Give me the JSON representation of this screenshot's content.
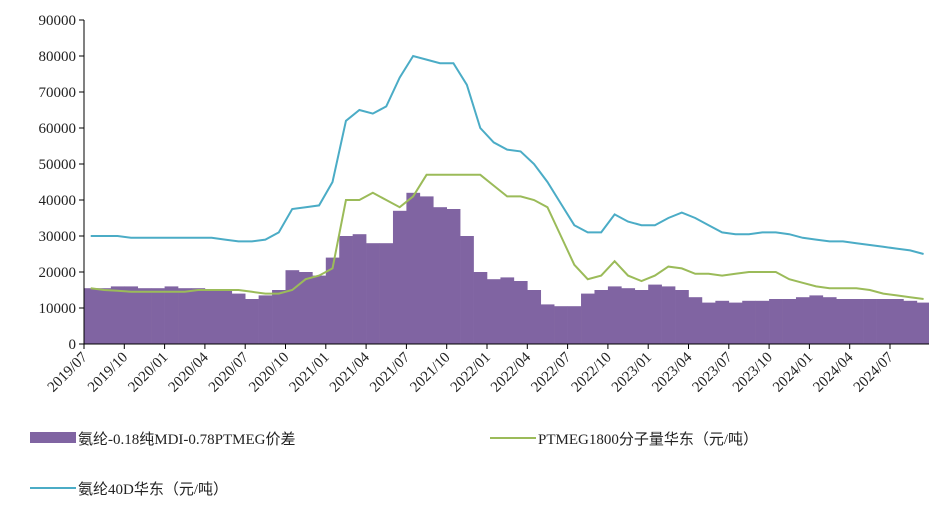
{
  "chart_data": {
    "type": "bar",
    "x": [
      "2019/07",
      "2019/08",
      "2019/09",
      "2019/10",
      "2019/11",
      "2019/12",
      "2020/01",
      "2020/02",
      "2020/03",
      "2020/04",
      "2020/05",
      "2020/06",
      "2020/07",
      "2020/08",
      "2020/09",
      "2020/10",
      "2020/11",
      "2020/12",
      "2021/01",
      "2021/02",
      "2021/03",
      "2021/04",
      "2021/05",
      "2021/06",
      "2021/07",
      "2021/08",
      "2021/09",
      "2021/10",
      "2021/11",
      "2021/12",
      "2022/01",
      "2022/02",
      "2022/03",
      "2022/04",
      "2022/05",
      "2022/06",
      "2022/07",
      "2022/08",
      "2022/09",
      "2022/10",
      "2022/11",
      "2022/12",
      "2023/01",
      "2023/02",
      "2023/03",
      "2023/04",
      "2023/05",
      "2023/06",
      "2023/07",
      "2023/08",
      "2023/09",
      "2023/10",
      "2023/11",
      "2023/12",
      "2024/01",
      "2024/02",
      "2024/03",
      "2024/04",
      "2024/05",
      "2024/06",
      "2024/07",
      "2024/08",
      "2024/09"
    ],
    "xticks": [
      "2019/07",
      "2019/10",
      "2020/01",
      "2020/04",
      "2020/07",
      "2020/10",
      "2021/01",
      "2021/04",
      "2021/07",
      "2021/10",
      "2022/01",
      "2022/04",
      "2022/07",
      "2022/10",
      "2023/01",
      "2023/04",
      "2023/07",
      "2023/10",
      "2024/01",
      "2024/04",
      "2024/07"
    ],
    "ylim": [
      0,
      90000
    ],
    "yticks": [
      0,
      10000,
      20000,
      30000,
      40000,
      50000,
      60000,
      70000,
      80000,
      90000
    ],
    "series": [
      {
        "name": "氨纶-0.18纯MDI-0.78PTMEG价差",
        "type": "bar",
        "color": "#8064a2",
        "values": [
          15500,
          15500,
          16000,
          16000,
          15500,
          15500,
          16000,
          15500,
          15500,
          15000,
          15000,
          14000,
          12500,
          13500,
          15000,
          20500,
          20000,
          19000,
          24000,
          30000,
          30500,
          28000,
          28000,
          37000,
          42000,
          41000,
          38000,
          37500,
          30000,
          20000,
          18000,
          18500,
          17500,
          15000,
          11000,
          10500,
          10500,
          14000,
          15000,
          16000,
          15500,
          15000,
          16500,
          16000,
          15000,
          13000,
          11500,
          12000,
          11500,
          12000,
          12000,
          12500,
          12500,
          13000,
          13500,
          13000,
          12500,
          12500,
          12500,
          12500,
          12500,
          12000,
          11500
        ]
      },
      {
        "name": "PTMEG1800分子量华东（元/吨）",
        "type": "line",
        "color": "#9bbb59",
        "values": [
          15500,
          15000,
          14800,
          14500,
          14500,
          14500,
          14500,
          14500,
          15000,
          15000,
          15000,
          15000,
          14500,
          14000,
          14000,
          15000,
          18000,
          19000,
          21000,
          40000,
          40000,
          42000,
          40000,
          38000,
          41000,
          47000,
          47000,
          47000,
          47000,
          47000,
          44000,
          41000,
          41000,
          40000,
          38000,
          30000,
          22000,
          18000,
          19000,
          23000,
          19000,
          17500,
          19000,
          21500,
          21000,
          19500,
          19500,
          19000,
          19500,
          20000,
          20000,
          20000,
          18000,
          17000,
          16000,
          15500,
          15500,
          15500,
          15000,
          14000,
          13500,
          13000,
          12500
        ]
      },
      {
        "name": "氨纶40D华东（元/吨）",
        "type": "line",
        "color": "#4bacc6",
        "values": [
          30000,
          30000,
          30000,
          29500,
          29500,
          29500,
          29500,
          29500,
          29500,
          29500,
          29000,
          28500,
          28500,
          29000,
          31000,
          37500,
          38000,
          38500,
          45000,
          62000,
          65000,
          64000,
          66000,
          74000,
          80000,
          79000,
          78000,
          78000,
          72000,
          60000,
          56000,
          54000,
          53500,
          50000,
          45000,
          39000,
          33000,
          31000,
          31000,
          36000,
          34000,
          33000,
          33000,
          35000,
          36500,
          35000,
          33000,
          31000,
          30500,
          30500,
          31000,
          31000,
          30500,
          29500,
          29000,
          28500,
          28500,
          28000,
          27500,
          27000,
          26500,
          26000,
          25000
        ]
      }
    ]
  }
}
